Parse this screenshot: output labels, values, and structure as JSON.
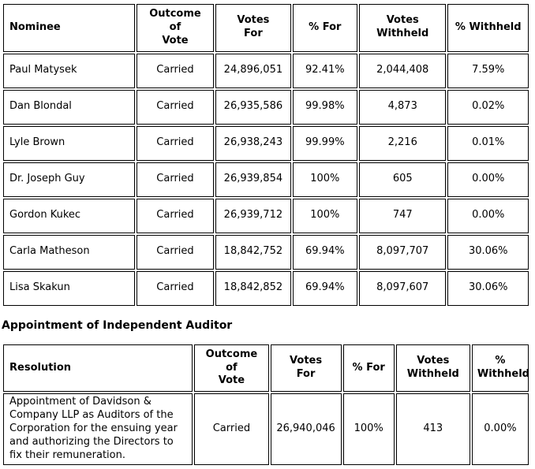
{
  "page": {
    "section_heading": "Appointment of Independent Auditor"
  },
  "director_vote_table": {
    "columns": [
      "Nominee",
      "Outcome of\nVote",
      "Votes\nFor",
      "% For",
      "Votes\nWithheld",
      "% Withheld"
    ],
    "rows": [
      [
        "Paul Matysek",
        "Carried",
        "24,896,051",
        "92.41%",
        "2,044,408",
        "7.59%"
      ],
      [
        "Dan Blondal",
        "Carried",
        "26,935,586",
        "99.98%",
        "4,873",
        "0.02%"
      ],
      [
        "Lyle Brown",
        "Carried",
        "26,938,243",
        "99.99%",
        "2,216",
        "0.01%"
      ],
      [
        "Dr. Joseph Guy",
        "Carried",
        "26,939,854",
        "100%",
        "605",
        "0.00%"
      ],
      [
        "Gordon Kukec",
        "Carried",
        "26,939,712",
        "100%",
        "747",
        "0.00%"
      ],
      [
        "Carla Matheson",
        "Carried",
        "18,842,752",
        "69.94%",
        "8,097,707",
        "30.06%"
      ],
      [
        "Lisa Skakun",
        "Carried",
        "18,842,852",
        "69.94%",
        "8,097,607",
        "30.06%"
      ]
    ]
  },
  "auditor_vote_table": {
    "columns": [
      "Resolution",
      "Outcome of\nVote",
      "Votes\nFor",
      "% For",
      "Votes\nWithheld",
      "%\nWithheld"
    ],
    "rows": [
      [
        "Appointment of Davidson & Company LLP as Auditors of the Corporation for the ensuing year and authorizing the Directors to fix their remuneration.",
        "Carried",
        "26,940,046",
        "100%",
        "413",
        "0.00%"
      ]
    ]
  }
}
